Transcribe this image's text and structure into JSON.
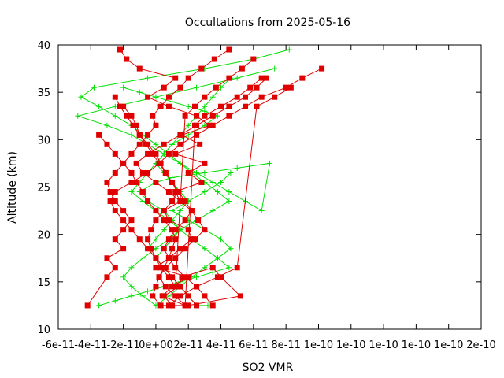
{
  "chart_data": {
    "type": "line",
    "title": "Occultations from 2025-05-16",
    "xlabel": "SO2 VMR",
    "ylabel": "Altitude (km)",
    "xlim": [
      -6e-11,
      2e-10
    ],
    "ylim": [
      10,
      40
    ],
    "x_ticks": [
      -6e-11,
      -4e-11,
      -2e-11,
      0,
      2e-11,
      4e-11,
      6e-11,
      8e-11,
      1e-10,
      1.2e-10,
      1.4e-10,
      1.6e-10,
      1.8e-10,
      2e-10
    ],
    "x_tick_labels": [
      "-6e-11",
      "-4e-11",
      "-2e-11",
      "0e+00",
      "2e-11",
      "4e-11",
      "6e-11",
      "8e-11",
      "1e-10",
      "1e-10",
      "1e-10",
      "1e-10",
      "1e-10",
      "2e-10"
    ],
    "y_ticks": [
      10,
      15,
      20,
      25,
      30,
      35,
      40
    ],
    "y_tick_labels": [
      "10",
      "15",
      "20",
      "25",
      "30",
      "35",
      "40"
    ],
    "grid": false,
    "legend": "none",
    "series": [
      {
        "color": "#e00000",
        "marker": "square",
        "x": [
          -2.2e-11,
          -1.8e-11,
          -1e-11,
          1.2e-11,
          5e-12,
          -5e-12,
          8e-12,
          2.5e-11,
          3.3e-11,
          1.6e-11,
          2.7e-11,
          1.2e-11,
          3e-11,
          2e-11,
          2.8e-11,
          1.2e-11,
          1.5e-11,
          5e-12,
          8e-12,
          2e-11,
          2.2e-11,
          1.5e-11,
          8e-12,
          0,
          2e-11,
          1e-11,
          4e-12,
          1.8e-11,
          1e-11,
          5e-12,
          1.4e-11,
          1.6e-11,
          3.5e-11,
          4e-11,
          5.2e-11,
          2e-11,
          1e-11
        ],
        "y": [
          39.5,
          38.5,
          37.5,
          36.5,
          35.5,
          34.5,
          33.5,
          32.5,
          31.5,
          30.5,
          29.5,
          28.5,
          27.5,
          26.5,
          25.5,
          24.5,
          23.5,
          22.5,
          21.5,
          20.5,
          19.5,
          18.5,
          17.5,
          16.5,
          15.5,
          14.5,
          13.5,
          12.5,
          12.5,
          13.5,
          14.5,
          15.5,
          16.5,
          15.5,
          13.5,
          12.5,
          12.5
        ]
      },
      {
        "color": "#e00000",
        "marker": "square",
        "x": [
          1.02e-10,
          9e-11,
          8e-11,
          6.5e-11,
          5.5e-11,
          4.5e-11,
          3.5e-11,
          2.5e-11,
          1.5e-11,
          8e-12,
          2e-12,
          -5e-12,
          -1.5e-11,
          -2.5e-11,
          -2.8e-11,
          -2.5e-11,
          -2e-11,
          -1.5e-11,
          -1e-11,
          -5e-12,
          0,
          5e-12,
          1e-11,
          1.5e-11,
          2e-11,
          2.5e-11
        ],
        "y": [
          37.5,
          36.5,
          35.5,
          34.5,
          33.5,
          32.5,
          31.5,
          30.5,
          29.5,
          28.5,
          27.5,
          26.5,
          25.5,
          24.5,
          23.5,
          22.5,
          21.5,
          20.5,
          19.5,
          18.5,
          17.5,
          16.5,
          15.5,
          14.5,
          13.5,
          12.5
        ]
      },
      {
        "color": "#e00000",
        "marker": "square",
        "x": [
          -4.2e-11,
          -3e-11,
          -2.5e-11,
          -3e-11,
          -2e-11,
          -2.5e-11,
          -2e-11,
          -1.5e-11,
          -2e-11,
          -2.5e-11,
          -2.8e-11,
          -3e-11,
          -2.5e-11,
          -2e-11,
          -1.5e-11,
          -1e-11,
          -5e-12,
          0,
          -2e-12,
          3e-12,
          8e-12,
          1.5e-11,
          2e-11,
          2.8e-11,
          3.6e-11,
          4.5e-11
        ],
        "y": [
          12.5,
          15.5,
          16.5,
          17.5,
          18.5,
          19.5,
          20.5,
          21.5,
          22.5,
          23.5,
          24.5,
          25.5,
          26.5,
          27.5,
          28.5,
          29.5,
          30.5,
          31.5,
          32.5,
          33.5,
          34.5,
          35.5,
          36.5,
          37.5,
          38.5,
          39.5
        ]
      },
      {
        "color": "#e00000",
        "marker": "square",
        "x": [
          -3.5e-11,
          -3e-11,
          -2.5e-11,
          -2e-11,
          -1.5e-11,
          -1.2e-11,
          -8e-12,
          -5e-12,
          0,
          5e-12,
          1e-11,
          1.2e-11,
          1e-11,
          8e-12,
          5e-12,
          2e-12,
          0,
          -2e-12,
          3e-12,
          8e-12,
          1.5e-11,
          2.5e-11,
          3.8e-11,
          5e-11,
          6.2e-11,
          7.3e-11,
          8.3e-11
        ],
        "y": [
          30.5,
          29.5,
          28.5,
          27.5,
          26.5,
          25.5,
          24.5,
          23.5,
          22.5,
          21.5,
          20.5,
          19.5,
          18.5,
          17.5,
          16.5,
          15.5,
          14.5,
          13.5,
          12.5,
          12.5,
          13.5,
          14.5,
          15.5,
          16.5,
          33.5,
          34.5,
          35.5
        ]
      },
      {
        "color": "#e00000",
        "marker": "square",
        "x": [
          6.8e-11,
          6.2e-11,
          5.5e-11,
          4.5e-11,
          3.5e-11,
          2.5e-11,
          1.5e-11,
          5e-12,
          -5e-12,
          -1.2e-11,
          -8e-12,
          0,
          8e-12,
          1.5e-11,
          2.2e-11,
          1.8e-11,
          1.2e-11,
          8e-12,
          5e-12,
          8e-12,
          1.2e-11,
          1.8e-11,
          2.5e-11,
          3e-11,
          3.5e-11
        ],
        "y": [
          36.5,
          35.5,
          34.5,
          33.5,
          32.5,
          31.5,
          30.5,
          29.5,
          28.5,
          27.5,
          26.5,
          25.5,
          24.5,
          23.5,
          22.5,
          21.5,
          20.5,
          19.5,
          18.5,
          17.5,
          16.5,
          15.5,
          14.5,
          13.5,
          12.5
        ]
      },
      {
        "color": "#e00000",
        "marker": "square",
        "x": [
          -2e-11,
          -1.5e-11,
          -1.2e-11,
          -1e-11,
          -5e-12,
          0,
          3e-12,
          6e-12,
          1e-11,
          1.3e-11,
          1e-11,
          5e-12,
          0,
          -3e-12,
          -5e-12,
          -3e-12,
          0,
          3e-12,
          8e-12,
          1.2e-11,
          1.8e-11,
          2.4e-11,
          3e-11,
          3.7e-11,
          4.5e-11,
          5.3e-11,
          6e-11
        ],
        "y": [
          33.5,
          32.5,
          31.5,
          30.5,
          29.5,
          28.5,
          27.5,
          26.5,
          25.5,
          24.5,
          23.5,
          22.5,
          21.5,
          20.5,
          19.5,
          18.5,
          17.5,
          16.5,
          15.5,
          14.5,
          32.5,
          33.5,
          34.5,
          35.5,
          36.5,
          37.5,
          38.5
        ]
      },
      {
        "color": "#e00000",
        "marker": "square",
        "x": [
          -2.5e-11,
          -2.2e-11,
          -1.8e-11,
          -1.4e-11,
          -1e-11,
          -6e-12,
          -2e-12,
          2e-12,
          6e-12,
          1e-11,
          1.4e-11,
          1.8e-11,
          2.2e-11,
          2.6e-11,
          3e-11,
          2.4e-11,
          1.8e-11,
          1.2e-11,
          6e-12,
          2e-12,
          6e-12,
          1.2e-11,
          1.8e-11,
          2.4e-11,
          3e-11,
          4e-11,
          5e-11,
          5.8e-11,
          6.5e-11
        ],
        "y": [
          34.5,
          33.5,
          32.5,
          31.5,
          30.5,
          29.5,
          28.5,
          27.5,
          26.5,
          25.5,
          24.5,
          23.5,
          22.5,
          21.5,
          20.5,
          19.5,
          18.5,
          17.5,
          16.5,
          15.5,
          14.5,
          13.5,
          12.5,
          31.5,
          32.5,
          33.5,
          34.5,
          35.5,
          36.5
        ]
      }
    ],
    "series_green": [
      {
        "color": "#00e000",
        "marker": "plus",
        "x": [
          8.2e-11,
          6e-11,
          3e-11,
          -5e-12,
          -3.8e-11,
          -4.6e-11,
          -3.5e-11,
          -2.5e-11,
          -1.5e-11,
          -8e-12,
          0,
          8e-12,
          1.5e-11,
          2.2e-11,
          3e-11,
          3.8e-11,
          4.5e-11,
          3.5e-11,
          2.5e-11,
          1.5e-11,
          8e-12,
          0,
          -8e-12,
          -1.5e-11,
          -2e-11,
          -1.5e-11,
          -8e-12,
          0,
          8e-12,
          1.5e-11,
          2.2e-11,
          3e-11,
          3.8e-11,
          4.6e-11,
          4e-11,
          3e-11,
          2e-11,
          1e-11,
          2e-11,
          3e-11,
          4e-11,
          4.6e-11
        ],
        "y": [
          39.5,
          38.5,
          37.5,
          36.5,
          35.5,
          34.5,
          33.5,
          32.5,
          31.5,
          30.5,
          29.5,
          28.5,
          27.5,
          26.5,
          25.5,
          24.5,
          23.5,
          22.5,
          21.5,
          20.5,
          19.5,
          18.5,
          17.5,
          16.5,
          15.5,
          14.5,
          13.5,
          12.5,
          13.5,
          14.5,
          15.5,
          16.5,
          17.5,
          18.5,
          19.5,
          20.5,
          21.5,
          22.5,
          23.5,
          24.5,
          25.5,
          26.5
        ]
      },
      {
        "color": "#00e000",
        "marker": "plus",
        "x": [
          7.3e-11,
          5e-11,
          2.5e-11,
          0,
          -2.5e-11,
          -4.8e-11,
          -3e-11,
          -1.5e-11,
          -5e-12,
          5e-12,
          1.5e-11,
          2.5e-11,
          3.5e-11,
          4.5e-11,
          5.5e-11,
          6.5e-11,
          7e-11,
          5e-11,
          3e-11,
          1e-11,
          0,
          -1e-11,
          -5e-12,
          5e-12,
          1e-11,
          1.5e-11,
          1e-11,
          5e-12,
          0,
          5e-12,
          1e-11,
          1.5e-11,
          2e-11
        ],
        "y": [
          37.5,
          36.5,
          35.5,
          34.5,
          33.5,
          32.5,
          31.5,
          30.5,
          29.5,
          28.5,
          27.5,
          26.5,
          25.5,
          24.5,
          23.5,
          22.5,
          27.5,
          27.0,
          26.5,
          26.0,
          25.5,
          24.5,
          23.5,
          22.5,
          21.5,
          20.5,
          19.5,
          18.5,
          17.5,
          16.5,
          15.5,
          14.5,
          13.5
        ]
      },
      {
        "color": "#00e000",
        "marker": "plus",
        "x": [
          -3.5e-11,
          -2.5e-11,
          -1.5e-11,
          -5e-12,
          5e-12,
          1.5e-11,
          2.5e-11,
          3.5e-11,
          4.5e-11,
          3.8e-11,
          3e-11,
          2.2e-11,
          1.5e-11,
          8e-12,
          0,
          -8e-12,
          -1.5e-11,
          -1e-11,
          -5e-12,
          0,
          5e-12,
          1e-11,
          1.5e-11,
          2e-11,
          2.5e-11,
          3e-11,
          3.5e-11,
          4e-11,
          4.6e-11
        ],
        "y": [
          12.5,
          13.0,
          13.5,
          14.0,
          14.5,
          15.0,
          15.5,
          16.0,
          16.5,
          17.5,
          18.5,
          19.5,
          20.5,
          21.5,
          22.5,
          23.5,
          24.5,
          25.5,
          26.5,
          27.5,
          28.5,
          29.5,
          30.5,
          31.5,
          32.5,
          33.5,
          34.5,
          35.5,
          36.5
        ]
      },
      {
        "color": "#00e000",
        "marker": "plus",
        "x": [
          -2e-11,
          -1e-11,
          0,
          1e-11,
          2e-11,
          3e-11,
          3.8e-11,
          3e-11,
          2e-11,
          1e-11,
          5e-12,
          0,
          5e-12,
          1e-11,
          1.5e-11,
          2e-11,
          1.5e-11,
          1e-11,
          5e-12,
          0,
          -5e-12,
          0,
          5e-12,
          1e-11,
          1.5e-11,
          2e-11,
          2.5e-11,
          3.2e-11
        ],
        "y": [
          35.5,
          35.0,
          34.5,
          34.0,
          33.5,
          33.0,
          32.5,
          31.5,
          30.5,
          29.5,
          28.5,
          27.5,
          26.5,
          25.5,
          24.5,
          23.5,
          22.5,
          21.5,
          20.5,
          19.5,
          18.5,
          17.5,
          16.5,
          15.5,
          14.5,
          13.5,
          12.5,
          12.5
        ]
      }
    ]
  }
}
